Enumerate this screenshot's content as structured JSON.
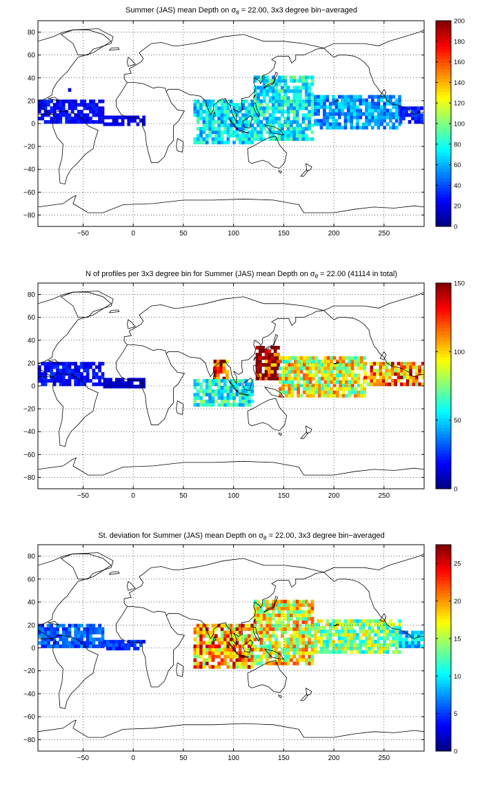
{
  "chart_data": [
    {
      "type": "heatmap",
      "title": "Summer (JAS) mean Depth on σθ = 22.00, 3x3 degree bin−averaged",
      "title_parts": {
        "pre": "Summer (JAS) mean Depth on σ",
        "sub": "θ",
        "post": " = 22.00, 3x3 degree bin−averaged"
      },
      "xlim": [
        -95,
        290
      ],
      "ylim": [
        -90,
        90
      ],
      "xticks": [
        -50,
        0,
        50,
        100,
        150,
        200,
        250
      ],
      "yticks": [
        80,
        60,
        40,
        20,
        0,
        -20,
        -40,
        -60,
        -80
      ],
      "grid": true,
      "colorbar": {
        "min": 0,
        "max": 200,
        "ticks": [
          0,
          20,
          40,
          60,
          80,
          100,
          120,
          140,
          160,
          180,
          200
        ]
      },
      "colormap": "jet",
      "bin_size_deg": 3,
      "regions": [
        {
          "region": "Atlantic Caribbean band",
          "lon": [
            -95,
            -30
          ],
          "lat": [
            0,
            20
          ],
          "value": 25
        },
        {
          "region": "Gulf of Mexico patch",
          "lon": [
            -65,
            -60
          ],
          "lat": [
            28,
            32
          ],
          "value": 30
        },
        {
          "region": "Equatorial Atlantic",
          "lon": [
            -30,
            10
          ],
          "lat": [
            -2,
            6
          ],
          "value": 20
        },
        {
          "region": "Indian Ocean",
          "lon": [
            60,
            120
          ],
          "lat": [
            -18,
            20
          ],
          "value": 70
        },
        {
          "region": "Western Pacific warm pool",
          "lon": [
            120,
            180
          ],
          "lat": [
            -15,
            40
          ],
          "value": 75
        },
        {
          "region": "Central/Eastern Pacific",
          "lon": [
            180,
            265
          ],
          "lat": [
            -5,
            25
          ],
          "value": 55
        },
        {
          "region": "Eastern Pacific coast",
          "lon": [
            265,
            288
          ],
          "lat": [
            0,
            15
          ],
          "value": 30
        }
      ]
    },
    {
      "type": "heatmap",
      "title": "N of profiles per 3x3 degree bin for Summer (JAS) mean Depth on σθ = 22.00 (41114 in total)",
      "title_parts": {
        "pre": "N of profiles per 3x3 degree bin for Summer (JAS) mean Depth on σ",
        "sub": "θ",
        "post": " = 22.00 (41114 in total)"
      },
      "total_profiles": 41114,
      "xlim": [
        -95,
        290
      ],
      "ylim": [
        -90,
        90
      ],
      "xticks": [
        -50,
        0,
        50,
        100,
        150,
        200,
        250
      ],
      "yticks": [
        80,
        60,
        40,
        20,
        0,
        -20,
        -40,
        -60,
        -80
      ],
      "grid": true,
      "colorbar": {
        "min": 0,
        "max": 150,
        "ticks": [
          0,
          50,
          100,
          150
        ]
      },
      "colormap": "jet",
      "bin_size_deg": 3,
      "regions": [
        {
          "region": "Atlantic Caribbean band",
          "lon": [
            -95,
            -30
          ],
          "lat": [
            0,
            20
          ],
          "value": 20
        },
        {
          "region": "Equatorial Atlantic",
          "lon": [
            -30,
            10
          ],
          "lat": [
            -2,
            6
          ],
          "value": 10
        },
        {
          "region": "Bay of Bengal",
          "lon": [
            80,
            95
          ],
          "lat": [
            5,
            22
          ],
          "value": 140
        },
        {
          "region": "Indian Ocean",
          "lon": [
            60,
            120
          ],
          "lat": [
            -18,
            5
          ],
          "value": 60
        },
        {
          "region": "Philippine Sea",
          "lon": [
            122,
            145
          ],
          "lat": [
            5,
            35
          ],
          "value": 150
        },
        {
          "region": "Western/Central Pacific",
          "lon": [
            145,
            230
          ],
          "lat": [
            -10,
            25
          ],
          "value": 90
        },
        {
          "region": "Eastern Pacific",
          "lon": [
            230,
            288
          ],
          "lat": [
            0,
            20
          ],
          "value": 110
        }
      ]
    },
    {
      "type": "heatmap",
      "title": "St. deviation for Summer (JAS) mean Depth on σθ = 22.00, 3x3 degree bin−averaged",
      "title_parts": {
        "pre": "St. deviation for Summer (JAS) mean Depth on σ",
        "sub": "θ",
        "post": " = 22.00, 3x3 degree bin−averaged"
      },
      "xlim": [
        -95,
        290
      ],
      "ylim": [
        -90,
        90
      ],
      "xticks": [
        -50,
        0,
        50,
        100,
        150,
        200,
        250
      ],
      "yticks": [
        80,
        60,
        40,
        20,
        0,
        -20,
        -40,
        -60,
        -80
      ],
      "grid": true,
      "colorbar": {
        "min": 0,
        "max": 27.5,
        "ticks": [
          0,
          5,
          10,
          15,
          20,
          25
        ]
      },
      "colormap": "jet",
      "bin_size_deg": 3,
      "regions": [
        {
          "region": "Atlantic Caribbean band",
          "lon": [
            -95,
            -30
          ],
          "lat": [
            0,
            20
          ],
          "value": 6
        },
        {
          "region": "Equatorial Atlantic",
          "lon": [
            -30,
            10
          ],
          "lat": [
            -2,
            6
          ],
          "value": 5
        },
        {
          "region": "Indian Ocean",
          "lon": [
            60,
            120
          ],
          "lat": [
            -18,
            20
          ],
          "value": 20
        },
        {
          "region": "Western Pacific warm pool",
          "lon": [
            120,
            180
          ],
          "lat": [
            -15,
            40
          ],
          "value": 17
        },
        {
          "region": "Central/Eastern Pacific",
          "lon": [
            180,
            265
          ],
          "lat": [
            -5,
            25
          ],
          "value": 14
        },
        {
          "region": "Eastern Pacific coast",
          "lon": [
            265,
            288
          ],
          "lat": [
            0,
            15
          ],
          "value": 9
        }
      ]
    }
  ]
}
